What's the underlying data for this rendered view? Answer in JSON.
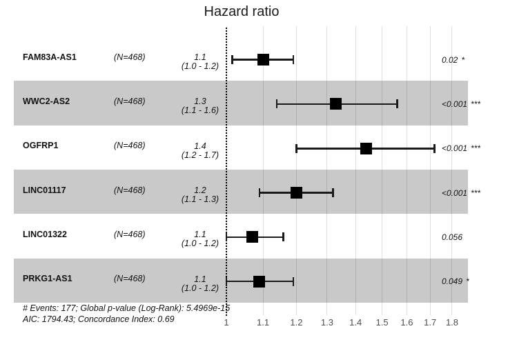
{
  "title": "Hazard ratio",
  "footer": {
    "line1": "# Events: 177; Global p-value (Log-Rank): 5.4969e-15",
    "line2": "AIC: 1794.43; Concordance Index: 0.69"
  },
  "colors": {
    "band": "#c9c9c9",
    "marker": "#000000",
    "error_bar": "#1a1a1a",
    "grid_line": "rgba(0,0,0,0.13)",
    "reference_line": "#000000",
    "tick_label": "#4d4d4d",
    "text": "#111111"
  },
  "chart_data": {
    "type": "forest",
    "title": "Hazard ratio",
    "x_axis": {
      "scale": "log",
      "ticks": [
        "1",
        "1.1",
        "1.2",
        "1.3",
        "1.4",
        "1.5",
        "1.6",
        "1.7",
        "1.8"
      ],
      "range": [
        1.0,
        1.85
      ],
      "reference_value": 1,
      "grid": true
    },
    "legend": "none",
    "rows": [
      {
        "label": "FAM83A-AS1",
        "n": "(N=468)",
        "estimate": "1.1",
        "ci": "(1.0 - 1.2)",
        "hr": 1.1,
        "lo": 1.015,
        "hi": 1.19,
        "p": "0.02",
        "sig": "*",
        "band": false
      },
      {
        "label": "WWC2-AS2",
        "n": "(N=468)",
        "estimate": "1.3",
        "ci": "(1.1 - 1.6)",
        "hr": 1.33,
        "lo": 1.14,
        "hi": 1.56,
        "p": "<0.001",
        "sig": "***",
        "band": true
      },
      {
        "label": "OGFRP1",
        "n": "(N=468)",
        "estimate": "1.4",
        "ci": "(1.2 - 1.7)",
        "hr": 1.44,
        "lo": 1.2,
        "hi": 1.72,
        "p": "<0.001",
        "sig": "***",
        "band": false
      },
      {
        "label": "LINC01117",
        "n": "(N=468)",
        "estimate": "1.2",
        "ci": "(1.1 - 1.3)",
        "hr": 1.2,
        "lo": 1.09,
        "hi": 1.32,
        "p": "<0.001",
        "sig": "***",
        "band": true
      },
      {
        "label": "LINC01322",
        "n": "(N=468)",
        "estimate": "1.1",
        "ci": "(1.0 - 1.2)",
        "hr": 1.07,
        "lo": 1.0,
        "hi": 1.16,
        "p": "0.056",
        "sig": "",
        "band": false
      },
      {
        "label": "PRKG1-AS1",
        "n": "(N=468)",
        "estimate": "1.1",
        "ci": "(1.0 - 1.2)",
        "hr": 1.09,
        "lo": 1.0,
        "hi": 1.19,
        "p": "0.049",
        "sig": "*",
        "band": true
      }
    ]
  }
}
